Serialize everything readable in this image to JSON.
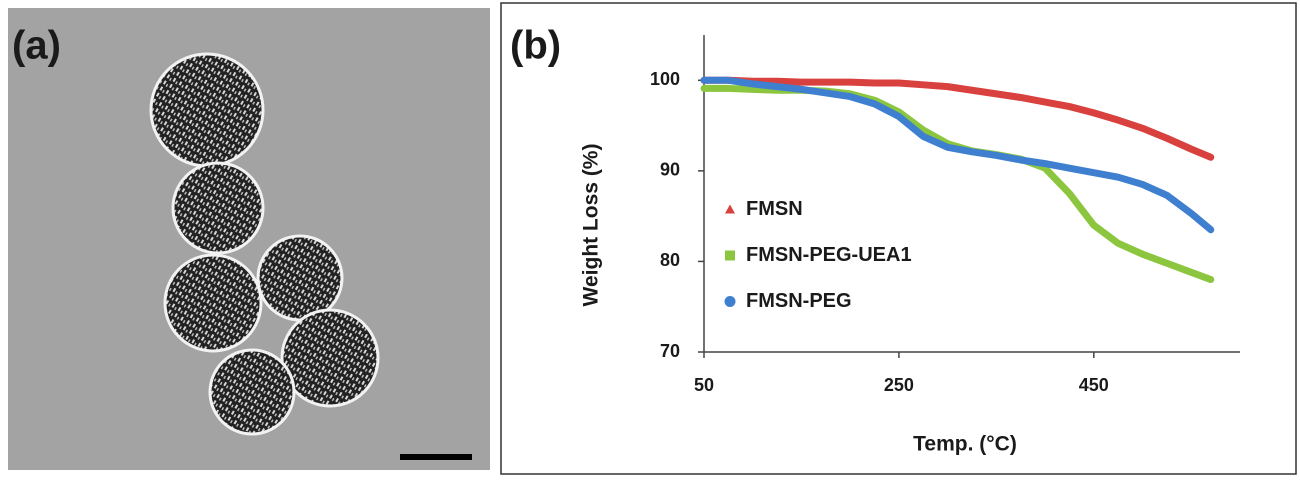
{
  "panels": [
    "(a)",
    "(b)"
  ],
  "chart_data": {
    "type": "line",
    "xlabel": "Temp. (°C)",
    "ylabel": "Weight Loss (%)",
    "x": [
      50,
      75,
      100,
      125,
      150,
      175,
      200,
      225,
      250,
      275,
      300,
      325,
      350,
      375,
      400,
      425,
      450,
      475,
      500,
      525,
      550,
      570
    ],
    "series": [
      {
        "name": "FMSN",
        "color": "#d9413e",
        "marker": "triangle",
        "values": [
          100,
          100,
          99.9,
          99.9,
          99.8,
          99.8,
          99.8,
          99.7,
          99.7,
          99.5,
          99.3,
          98.9,
          98.5,
          98.1,
          97.6,
          97.1,
          96.4,
          95.6,
          94.7,
          93.6,
          92.4,
          91.5
        ]
      },
      {
        "name": "FMSN-PEG-UEA1",
        "color": "#8cc63f",
        "marker": "square",
        "values": [
          99.1,
          99.1,
          99.0,
          98.9,
          98.9,
          98.8,
          98.5,
          97.8,
          96.5,
          94.5,
          93.0,
          92.2,
          91.8,
          91.3,
          90.3,
          87.5,
          84.0,
          82.0,
          80.8,
          79.8,
          78.8,
          78.0
        ]
      },
      {
        "name": "FMSN-PEG",
        "color": "#3f7fd0",
        "marker": "circle",
        "values": [
          100,
          100,
          99.6,
          99.3,
          99.0,
          98.6,
          98.2,
          97.4,
          96.0,
          93.8,
          92.6,
          92.1,
          91.7,
          91.2,
          90.8,
          90.3,
          89.8,
          89.3,
          88.5,
          87.3,
          85.3,
          83.5
        ]
      }
    ],
    "xlim": [
      50,
      600
    ],
    "xticks": [
      50,
      250,
      450
    ],
    "ylim": [
      70,
      105
    ],
    "yticks": [
      70,
      80,
      90,
      100
    ],
    "legend": "center-left"
  }
}
